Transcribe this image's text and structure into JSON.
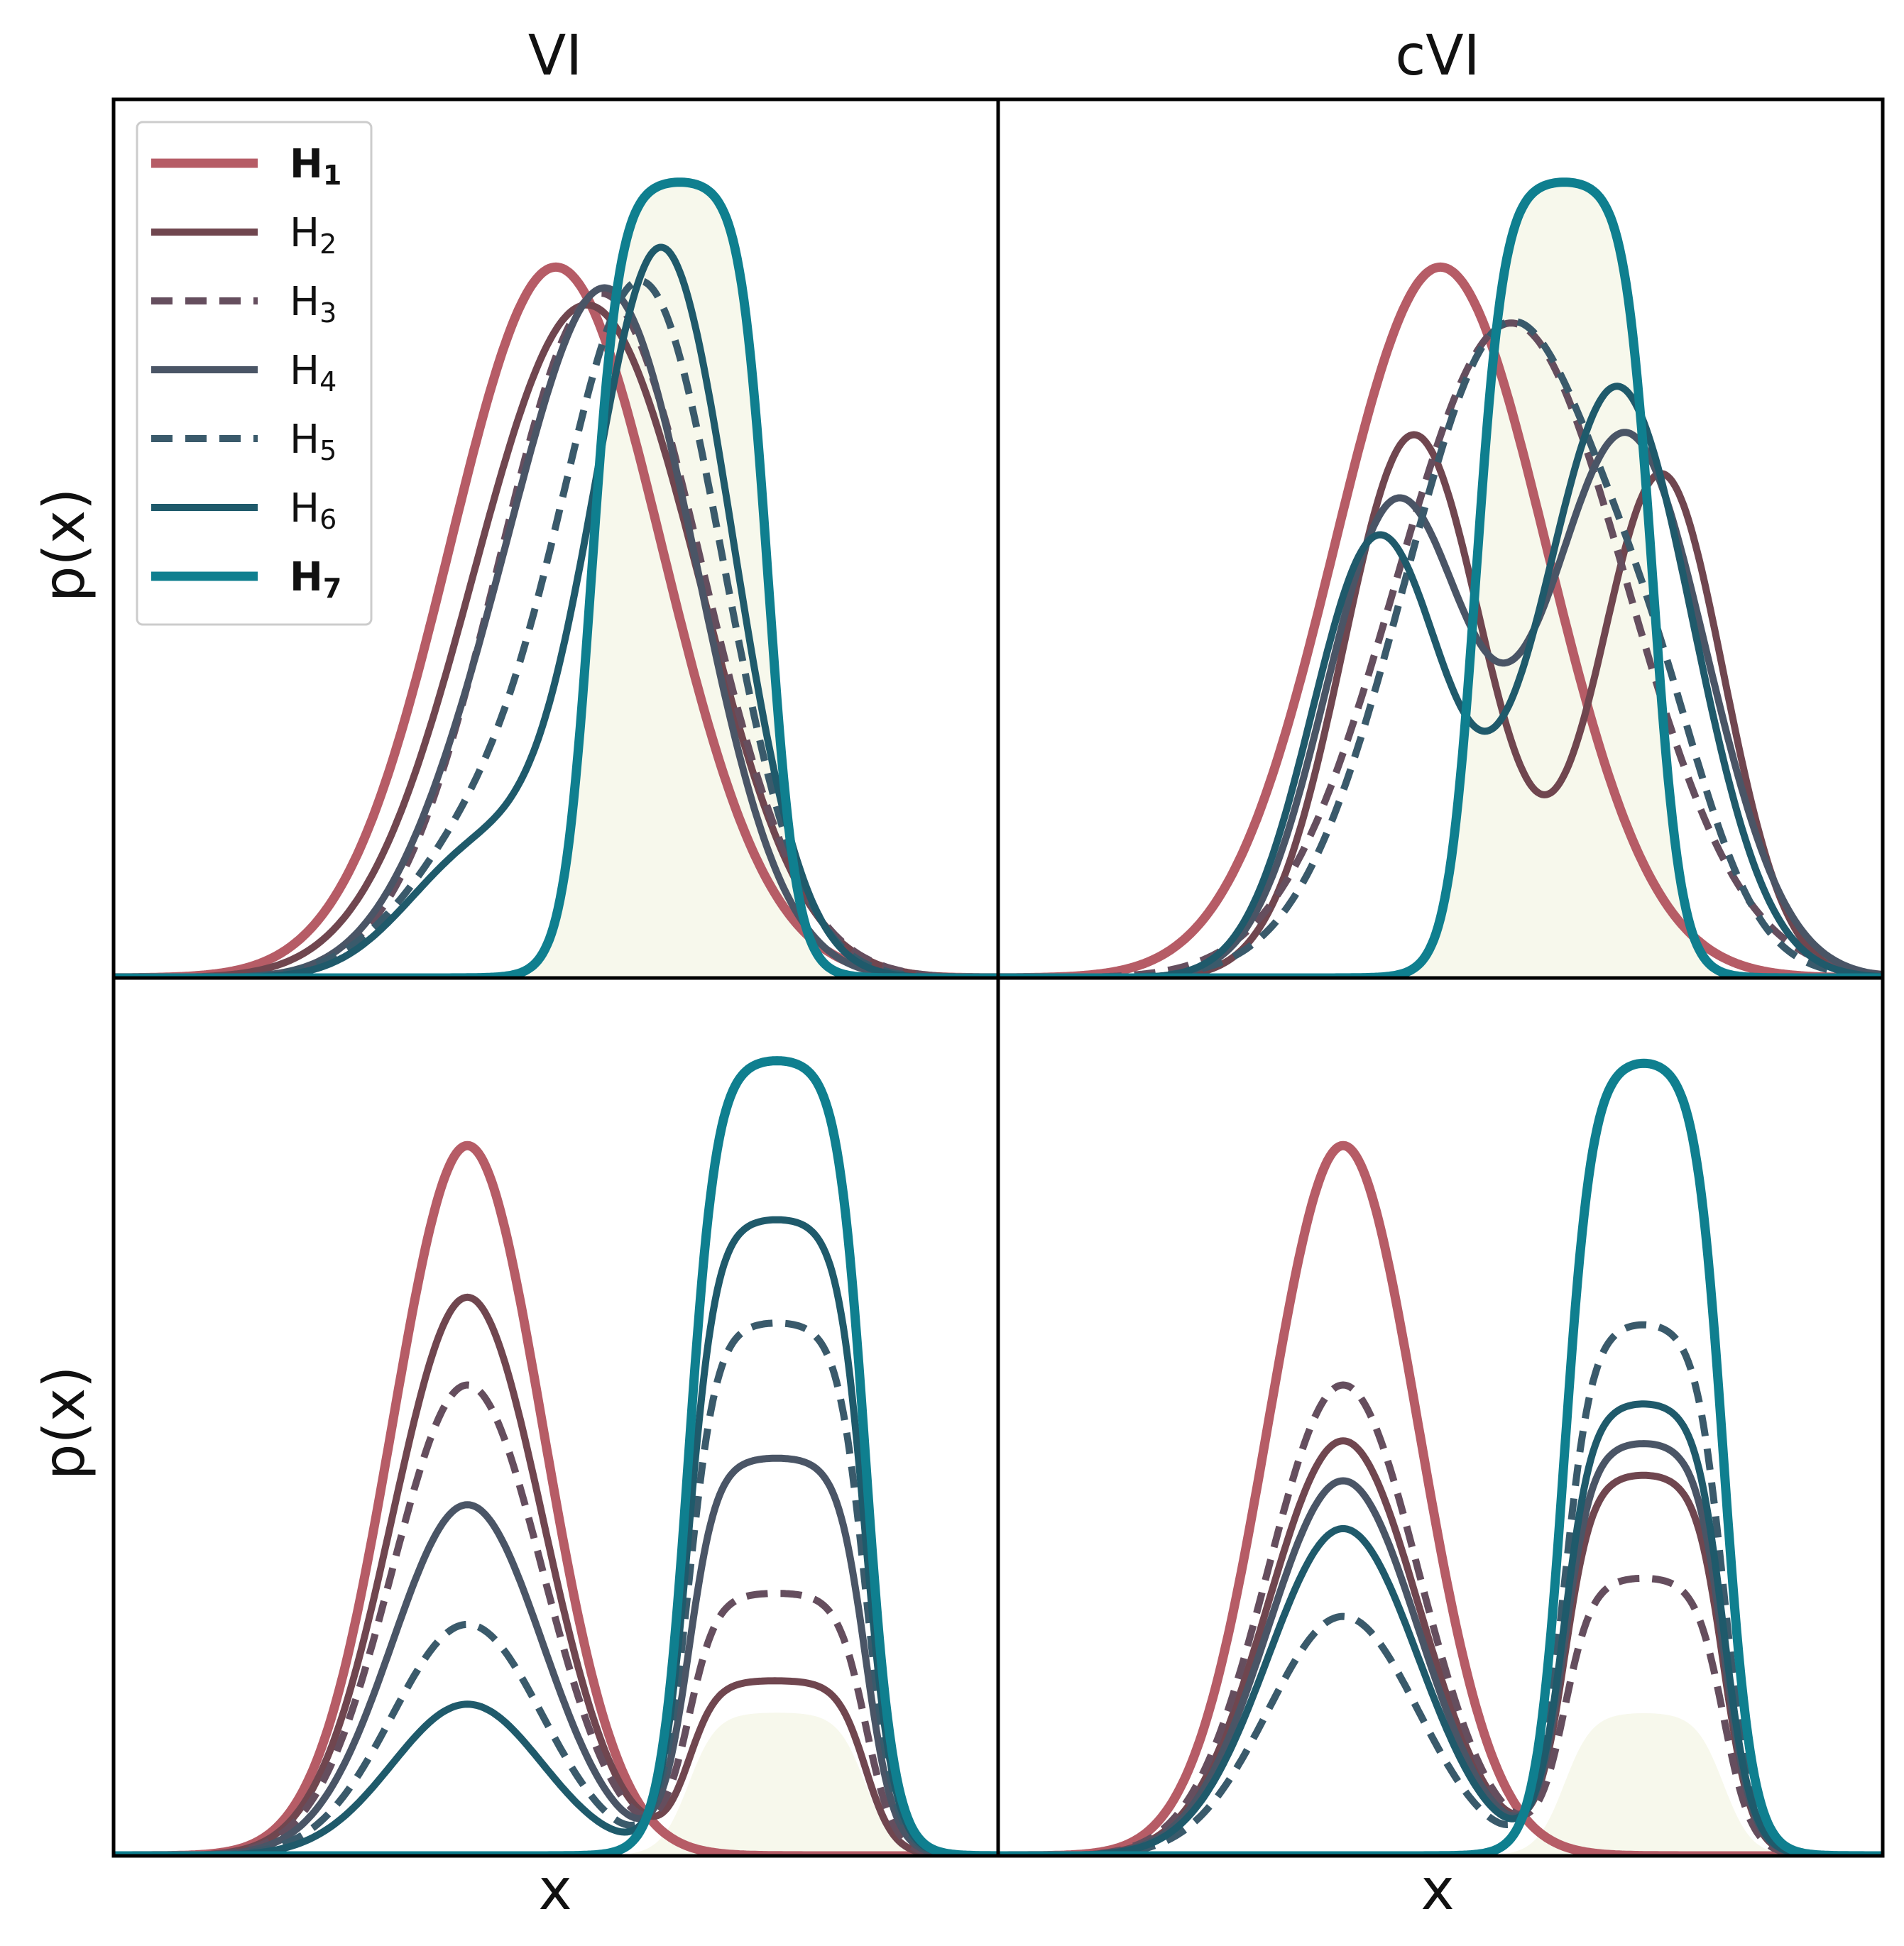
{
  "chart_data": {
    "type": "line",
    "column_titles": [
      "VI",
      "cVI"
    ],
    "xlabel": "x",
    "ylabel": "p(x)",
    "legend": {
      "location": "upper-left",
      "entries": [
        {
          "label": "H",
          "subscript": "1",
          "color": "#b65c66",
          "dash": "solid",
          "bold": true
        },
        {
          "label": "H",
          "subscript": "2",
          "color": "#70464f",
          "dash": "solid",
          "bold": false
        },
        {
          "label": "H",
          "subscript": "3",
          "color": "#654e5e",
          "dash": "dashed",
          "bold": false
        },
        {
          "label": "H",
          "subscript": "4",
          "color": "#4a5566",
          "dash": "solid",
          "bold": false
        },
        {
          "label": "H",
          "subscript": "5",
          "color": "#3a5a6b",
          "dash": "dashed",
          "bold": false
        },
        {
          "label": "H",
          "subscript": "6",
          "color": "#1f5a6b",
          "dash": "solid",
          "bold": false
        },
        {
          "label": "H",
          "subscript": "7",
          "color": "#0f7f8f",
          "dash": "solid",
          "bold": true
        }
      ]
    },
    "target_fill_color": "#f7f8ec",
    "x_range": [
      0,
      1
    ],
    "y_range": [
      0,
      1.1
    ],
    "panels": [
      {
        "id": "top-vi",
        "target": {
          "shape": "plateau",
          "center": 0.64,
          "half_width": 0.1,
          "softness": 0.035,
          "height": 1.0
        },
        "curves": [
          {
            "series": "H1",
            "components": [
              {
                "mu": 0.5,
                "sigma": 0.12,
                "h": 0.89
              }
            ]
          },
          {
            "series": "H2",
            "components": [
              {
                "mu": 0.52,
                "sigma": 0.12,
                "h": 0.78
              },
              {
                "mu": 0.63,
                "sigma": 0.09,
                "h": 0.12
              }
            ]
          },
          {
            "series": "H3",
            "components": [
              {
                "mu": 0.56,
                "sigma": 0.11,
                "h": 0.8
              },
              {
                "mu": 0.45,
                "sigma": 0.1,
                "h": 0.1
              }
            ]
          },
          {
            "series": "H4",
            "components": [
              {
                "mu": 0.57,
                "sigma": 0.095,
                "h": 0.79
              },
              {
                "mu": 0.43,
                "sigma": 0.09,
                "h": 0.22
              }
            ]
          },
          {
            "series": "H5",
            "components": [
              {
                "mu": 0.6,
                "sigma": 0.09,
                "h": 0.85
              },
              {
                "mu": 0.42,
                "sigma": 0.09,
                "h": 0.16
              }
            ]
          },
          {
            "series": "H6",
            "components": [
              {
                "mu": 0.62,
                "sigma": 0.08,
                "h": 0.91
              },
              {
                "mu": 0.41,
                "sigma": 0.08,
                "h": 0.15
              }
            ]
          },
          {
            "series": "H7",
            "plateau": {
              "center": 0.64,
              "half_width": 0.1,
              "softness": 0.035,
              "height": 1.0
            }
          }
        ]
      },
      {
        "id": "top-cvi",
        "target": {
          "shape": "plateau",
          "center": 0.64,
          "half_width": 0.1,
          "softness": 0.035,
          "height": 1.0
        },
        "curves": [
          {
            "series": "H1",
            "components": [
              {
                "mu": 0.5,
                "sigma": 0.12,
                "h": 0.89
              }
            ]
          },
          {
            "series": "H2",
            "components": [
              {
                "mu": 0.47,
                "sigma": 0.08,
                "h": 0.68
              },
              {
                "mu": 0.75,
                "sigma": 0.07,
                "h": 0.63
              }
            ]
          },
          {
            "series": "H3",
            "components": [
              {
                "mu": 0.58,
                "sigma": 0.13,
                "h": 0.82
              }
            ]
          },
          {
            "series": "H4",
            "components": [
              {
                "mu": 0.45,
                "sigma": 0.08,
                "h": 0.59
              },
              {
                "mu": 0.71,
                "sigma": 0.09,
                "h": 0.68
              }
            ]
          },
          {
            "series": "H5",
            "components": [
              {
                "mu": 0.58,
                "sigma": 0.12,
                "h": 0.82
              },
              {
                "mu": 0.75,
                "sigma": 0.06,
                "h": 0.12
              }
            ]
          },
          {
            "series": "H6",
            "components": [
              {
                "mu": 0.43,
                "sigma": 0.075,
                "h": 0.55
              },
              {
                "mu": 0.7,
                "sigma": 0.085,
                "h": 0.74
              }
            ]
          },
          {
            "series": "H7",
            "plateau": {
              "center": 0.64,
              "half_width": 0.1,
              "softness": 0.035,
              "height": 1.0
            }
          }
        ]
      },
      {
        "id": "bottom-vi",
        "target": {
          "shape": "plateau",
          "center": 0.75,
          "half_width": 0.1,
          "softness": 0.035,
          "height": 0.18
        },
        "curves": [
          {
            "series": "H1",
            "components": [
              {
                "mu": 0.4,
                "sigma": 0.085,
                "h": 0.89
              }
            ]
          },
          {
            "series": "H2",
            "components": [
              {
                "mu": 0.4,
                "sigma": 0.085,
                "h": 0.7
              }
            ],
            "plateau": {
              "center": 0.75,
              "half_width": 0.1,
              "softness": 0.035,
              "height": 0.22
            }
          },
          {
            "series": "H3",
            "components": [
              {
                "mu": 0.4,
                "sigma": 0.085,
                "h": 0.59
              }
            ],
            "plateau": {
              "center": 0.75,
              "half_width": 0.1,
              "softness": 0.035,
              "height": 0.33
            }
          },
          {
            "series": "H4",
            "components": [
              {
                "mu": 0.4,
                "sigma": 0.085,
                "h": 0.44
              }
            ],
            "plateau": {
              "center": 0.75,
              "half_width": 0.1,
              "softness": 0.035,
              "height": 0.5
            }
          },
          {
            "series": "H5",
            "components": [
              {
                "mu": 0.4,
                "sigma": 0.085,
                "h": 0.29
              }
            ],
            "plateau": {
              "center": 0.75,
              "half_width": 0.1,
              "softness": 0.035,
              "height": 0.67
            }
          },
          {
            "series": "H6",
            "components": [
              {
                "mu": 0.4,
                "sigma": 0.085,
                "h": 0.19
              }
            ],
            "plateau": {
              "center": 0.75,
              "half_width": 0.1,
              "softness": 0.035,
              "height": 0.8
            }
          },
          {
            "series": "H7",
            "plateau": {
              "center": 0.75,
              "half_width": 0.1,
              "softness": 0.035,
              "height": 1.0
            }
          }
        ]
      },
      {
        "id": "bottom-cvi",
        "target": {
          "shape": "plateau",
          "center": 0.73,
          "half_width": 0.09,
          "softness": 0.035,
          "height": 0.18
        },
        "curves": [
          {
            "series": "H1",
            "components": [
              {
                "mu": 0.39,
                "sigma": 0.085,
                "h": 0.89
              }
            ]
          },
          {
            "series": "H2",
            "components": [
              {
                "mu": 0.39,
                "sigma": 0.085,
                "h": 0.52
              }
            ],
            "plateau": {
              "center": 0.73,
              "half_width": 0.09,
              "softness": 0.035,
              "height": 0.48
            }
          },
          {
            "series": "H3",
            "components": [
              {
                "mu": 0.39,
                "sigma": 0.085,
                "h": 0.59
              }
            ],
            "plateau": {
              "center": 0.73,
              "half_width": 0.09,
              "softness": 0.035,
              "height": 0.35
            }
          },
          {
            "series": "H4",
            "components": [
              {
                "mu": 0.39,
                "sigma": 0.085,
                "h": 0.47
              }
            ],
            "plateau": {
              "center": 0.73,
              "half_width": 0.09,
              "softness": 0.035,
              "height": 0.52
            }
          },
          {
            "series": "H5",
            "components": [
              {
                "mu": 0.39,
                "sigma": 0.085,
                "h": 0.3
              }
            ],
            "plateau": {
              "center": 0.73,
              "half_width": 0.09,
              "softness": 0.035,
              "height": 0.67
            }
          },
          {
            "series": "H6",
            "components": [
              {
                "mu": 0.39,
                "sigma": 0.085,
                "h": 0.41
              }
            ],
            "plateau": {
              "center": 0.73,
              "half_width": 0.09,
              "softness": 0.035,
              "height": 0.57
            }
          },
          {
            "series": "H7",
            "plateau": {
              "center": 0.73,
              "half_width": 0.09,
              "softness": 0.035,
              "height": 1.0
            }
          }
        ]
      }
    ]
  }
}
